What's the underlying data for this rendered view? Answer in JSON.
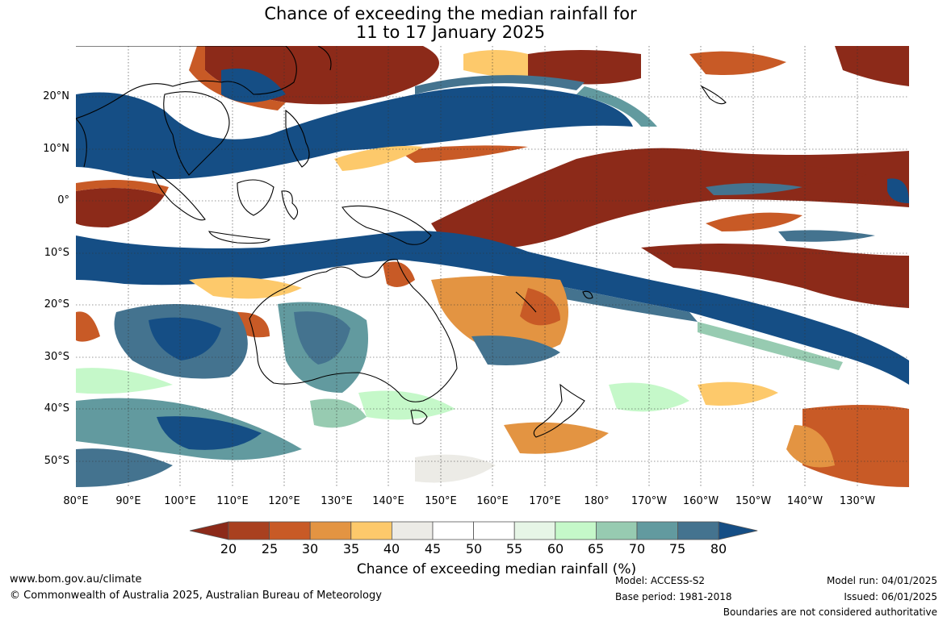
{
  "title": {
    "line1": "Chance of exceeding the median rainfall for",
    "line2": "11 to 17 January 2025"
  },
  "map": {
    "lat_labels": [
      "20°N",
      "10°N",
      "0°",
      "10°S",
      "20°S",
      "30°S",
      "40°S",
      "50°S"
    ],
    "lon_labels": [
      "80°E",
      "90°E",
      "100°E",
      "110°E",
      "120°E",
      "130°E",
      "140°E",
      "150°E",
      "160°E",
      "170°E",
      "180°",
      "170°W",
      "160°W",
      "150°W",
      "140°W",
      "130°W"
    ]
  },
  "colorbar": {
    "ticks": [
      "20",
      "25",
      "30",
      "35",
      "40",
      "45",
      "50",
      "55",
      "60",
      "65",
      "70",
      "75",
      "80"
    ],
    "colors": [
      "#8c2a19",
      "#a9401f",
      "#c85a26",
      "#e39442",
      "#fdc96b",
      "#ecebe6",
      "#ffffff",
      "#ffffff",
      "#e6f5e6",
      "#c5f8c9",
      "#97cbb1",
      "#629a9f",
      "#44738f",
      "#154e85"
    ],
    "label": "Chance of exceeding median rainfall (%)"
  },
  "footer": {
    "url": "www.bom.gov.au/climate",
    "copyright": "© Commonwealth of Australia 2025, Australian Bureau of Meteorology",
    "model": "Model: ACCESS-S2",
    "base_period": "Base period: 1981-2018",
    "model_run": "Model run: 04/01/2025",
    "issued": "Issued: 06/01/2025",
    "disclaimer": "Boundaries are not considered authoritative"
  }
}
